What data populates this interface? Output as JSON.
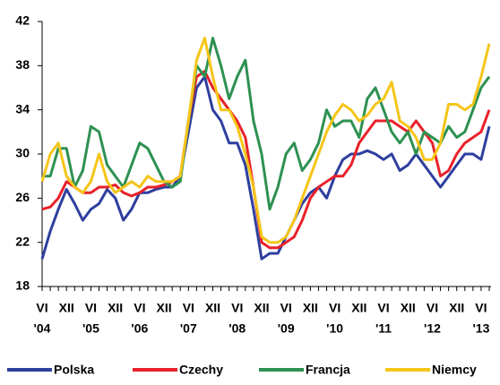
{
  "chart_data": {
    "type": "line",
    "categories": [
      "VI",
      null,
      null,
      "XII",
      null,
      null,
      "VI",
      null,
      null,
      "XII",
      null,
      null,
      "VI",
      null,
      null,
      "XII",
      null,
      null,
      "VI",
      null,
      null,
      "XII",
      null,
      null,
      "VI",
      null,
      null,
      "XII",
      null,
      null,
      "VI",
      null,
      null,
      "XII",
      null,
      null,
      "VI",
      null,
      null,
      "XII",
      null,
      null,
      "VI",
      null,
      null,
      "XII",
      null,
      null,
      "VI",
      null,
      null,
      "XII",
      null,
      null,
      "VI",
      null
    ],
    "x_year_labels": [
      "'04",
      null,
      null,
      null,
      null,
      null,
      "'05",
      null,
      null,
      null,
      null,
      null,
      "'06",
      null,
      null,
      null,
      null,
      null,
      "'07",
      null,
      null,
      null,
      null,
      null,
      "'08",
      null,
      null,
      null,
      null,
      null,
      "'09",
      null,
      null,
      null,
      null,
      null,
      "'10",
      null,
      null,
      null,
      null,
      null,
      "'11",
      null,
      null,
      null,
      null,
      null,
      "'12",
      null,
      null,
      null,
      null,
      null,
      "'13",
      null
    ],
    "series": [
      {
        "name": "Polska",
        "color": "#2e3f9e",
        "values": [
          20.5,
          23,
          25,
          26.8,
          25.5,
          24,
          25,
          25.5,
          26.8,
          26,
          24,
          25,
          26.5,
          26.5,
          26.8,
          27,
          27,
          28,
          32,
          36,
          37,
          34,
          33,
          31,
          31,
          29,
          25,
          20.5,
          21,
          21,
          22.5,
          24,
          25.5,
          26.5,
          27,
          26,
          28,
          29.5,
          30,
          30,
          30.3,
          30,
          29.5,
          30,
          28.5,
          29,
          30,
          29,
          28,
          27,
          28,
          29,
          30,
          30,
          29.5,
          32.5
        ]
      },
      {
        "name": "Czechy",
        "color": "#e8212a",
        "values": [
          25,
          25.2,
          26,
          27.5,
          27,
          26.5,
          26.5,
          27,
          27,
          27.2,
          26.5,
          26.2,
          26.5,
          27,
          27,
          27.2,
          27.5,
          28,
          33,
          37,
          37.5,
          36,
          35,
          34,
          33,
          31.5,
          27,
          22,
          21.5,
          21.5,
          22,
          22.5,
          24,
          26,
          27,
          27.5,
          28,
          28,
          29,
          31,
          32,
          33,
          33,
          33,
          32.5,
          32,
          33,
          32,
          31,
          28,
          28.5,
          30,
          31,
          31.5,
          32,
          34
        ]
      },
      {
        "name": "Francja",
        "color": "#2e9152",
        "values": [
          28,
          28,
          30.5,
          30.5,
          27,
          28.5,
          32.5,
          32,
          29,
          28,
          27,
          29,
          31,
          30.5,
          29,
          27.5,
          27,
          27.5,
          33,
          38,
          37,
          40.5,
          38,
          35,
          37,
          38.5,
          33,
          30,
          25,
          27,
          30,
          31,
          28.5,
          29.5,
          31,
          34,
          32.5,
          33,
          33,
          31.5,
          35,
          36,
          34,
          32,
          31,
          32,
          30,
          32,
          31.5,
          31,
          32.5,
          31.5,
          32,
          34,
          36,
          37
        ]
      },
      {
        "name": "Niemcy",
        "color": "#f5c518",
        "values": [
          27.5,
          30,
          31,
          28,
          27,
          26.5,
          27.5,
          30,
          27.5,
          26.5,
          27,
          27.5,
          27,
          28,
          27.5,
          27.5,
          27.5,
          28,
          33,
          38.5,
          40.5,
          37,
          34,
          34,
          32.5,
          30,
          27,
          22.5,
          22,
          22,
          22.5,
          24,
          26,
          28,
          30,
          32,
          33.5,
          34.5,
          34,
          33,
          33.5,
          34.5,
          35,
          36.5,
          33,
          32.5,
          31.5,
          29.5,
          29.5,
          31,
          34.5,
          34.5,
          34,
          34.5,
          37,
          40
        ]
      }
    ],
    "ylim": [
      18,
      42
    ],
    "yticks": [
      18,
      22,
      26,
      30,
      34,
      38,
      42
    ],
    "legend": "bottom"
  }
}
